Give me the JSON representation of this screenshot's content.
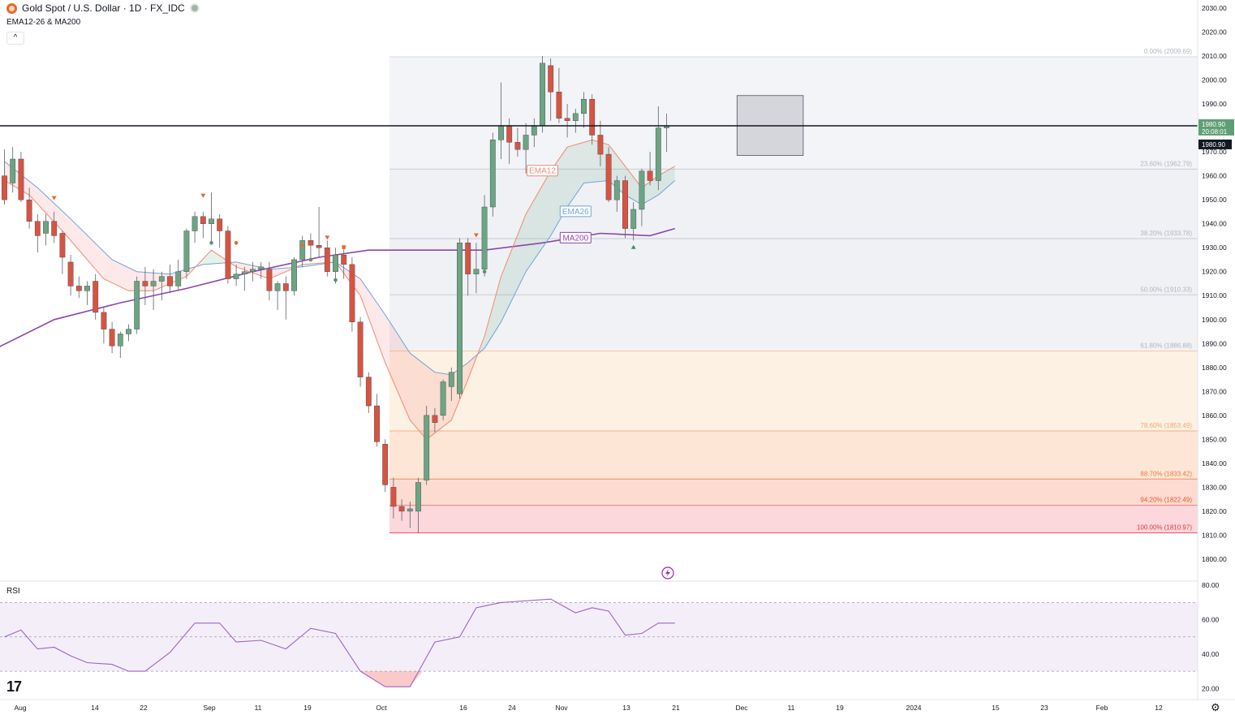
{
  "header": {
    "title": "Gold Spot / U.S. Dollar · 1D · FX_IDC",
    "indicator": "EMA12-26 & MA200",
    "collapse_glyph": "^",
    "rsi_label": "RSI",
    "logo": "17"
  },
  "colors": {
    "up": "#6ba583",
    "down": "#d75442",
    "ema12": "#f08a73",
    "ema26": "#6fa4d9",
    "ma200": "#8e44ad",
    "rsi": "#9c62c9",
    "price_label_bg": "#5f9f75"
  },
  "chart_data": [
    {
      "type": "candlestick",
      "title": "Gold Spot / U.S. Dollar · 1D · FX_IDC",
      "price_axis": {
        "ticks": [
          "1800.00",
          "1810.00",
          "1820.00",
          "1830.00",
          "1840.00",
          "1850.00",
          "1860.00",
          "1870.00",
          "1880.00",
          "1890.00",
          "1900.00",
          "1910.00",
          "1920.00",
          "1930.00",
          "1940.00",
          "1950.00",
          "1960.00",
          "1970.00",
          "1980.00",
          "1990.00",
          "2000.00",
          "2010.00",
          "2020.00",
          "2030.00"
        ],
        "range": [
          1794,
          2032
        ]
      },
      "x_axis_ticks": [
        "Aug",
        "14",
        "22",
        "Sep",
        "11",
        "19",
        "Oct",
        "16",
        "24",
        "Nov",
        "13",
        "21",
        "Dec",
        "11",
        "19",
        "2024",
        "15",
        "23",
        "Feb",
        "12"
      ],
      "last_price": {
        "price": 1980.9,
        "label": "1980.90",
        "countdown": "20:08:01"
      },
      "horizontal_line": 1980.9,
      "fibonacci": {
        "high": 2009.69,
        "low": 1810.97,
        "levels": [
          {
            "label": "0.00% (2009.69)",
            "price": 2009.69
          },
          {
            "label": "23.60% (1962.79)",
            "price": 1962.79
          },
          {
            "label": "38.20% (1933.78)",
            "price": 1933.78
          },
          {
            "label": "50.00% (1910.33)",
            "price": 1910.33
          },
          {
            "label": "61.80% (1886.88)",
            "price": 1886.88
          },
          {
            "label": "78.60% (1853.49)",
            "price": 1853.49
          },
          {
            "label": "88.70% (1833.42)",
            "price": 1833.42
          },
          {
            "label": "94.20% (1822.49)",
            "price": 1822.49
          },
          {
            "label": "100.00% (1810.97)",
            "price": 1810.97
          }
        ]
      },
      "target_zone": {
        "price_high": 1993.5,
        "price_low": 1968.5,
        "x_start_index": 89,
        "x_end_index": 97
      },
      "candles": [
        [
          1960,
          1971,
          1948,
          1950
        ],
        [
          1957,
          1972,
          1953,
          1967
        ],
        [
          1967,
          1970,
          1949,
          1950
        ],
        [
          1950,
          1955,
          1938,
          1941
        ],
        [
          1941,
          1944,
          1928,
          1935
        ],
        [
          1936,
          1944,
          1931,
          1941
        ],
        [
          1941,
          1945,
          1932,
          1935
        ],
        [
          1936,
          1937,
          1919,
          1926
        ],
        [
          1924,
          1927,
          1910,
          1914
        ],
        [
          1914,
          1918,
          1909,
          1912
        ],
        [
          1912,
          1916,
          1906,
          1914
        ],
        [
          1916,
          1919,
          1900,
          1903
        ],
        [
          1903,
          1905,
          1890,
          1896
        ],
        [
          1896,
          1899,
          1886,
          1889
        ],
        [
          1889,
          1895,
          1884,
          1894
        ],
        [
          1894,
          1898,
          1891,
          1896
        ],
        [
          1896,
          1918,
          1894,
          1916
        ],
        [
          1916,
          1922,
          1906,
          1914
        ],
        [
          1914,
          1921,
          1904,
          1916
        ],
        [
          1916,
          1920,
          1908,
          1918
        ],
        [
          1918,
          1923,
          1911,
          1914
        ],
        [
          1914,
          1925,
          1912,
          1920
        ],
        [
          1920,
          1938,
          1917,
          1937
        ],
        [
          1937,
          1945,
          1932,
          1943
        ],
        [
          1943,
          1945,
          1934,
          1940
        ],
        [
          1940,
          1953,
          1932,
          1942
        ],
        [
          1942,
          1944,
          1930,
          1937
        ],
        [
          1937,
          1939,
          1915,
          1917
        ],
        [
          1917,
          1923,
          1914,
          1919
        ],
        [
          1919,
          1922,
          1912,
          1920
        ],
        [
          1920,
          1924,
          1916,
          1921
        ],
        [
          1921,
          1924,
          1917,
          1922
        ],
        [
          1921,
          1924,
          1908,
          1912
        ],
        [
          1912,
          1916,
          1904,
          1915
        ],
        [
          1915,
          1918,
          1900,
          1912
        ],
        [
          1912,
          1926,
          1910,
          1925
        ],
        [
          1925,
          1935,
          1922,
          1933
        ],
        [
          1933,
          1936,
          1925,
          1931
        ],
        [
          1931,
          1947,
          1926,
          1930
        ],
        [
          1930,
          1933,
          1918,
          1920
        ],
        [
          1920,
          1930,
          1915,
          1927
        ],
        [
          1927,
          1929,
          1917,
          1923
        ],
        [
          1923,
          1926,
          1895,
          1899
        ],
        [
          1899,
          1901,
          1872,
          1876
        ],
        [
          1876,
          1878,
          1861,
          1864
        ],
        [
          1864,
          1869,
          1847,
          1849
        ],
        [
          1848,
          1850,
          1828,
          1831
        ],
        [
          1830,
          1834,
          1817,
          1822
        ],
        [
          1822,
          1825,
          1816,
          1820
        ],
        [
          1820,
          1824,
          1813,
          1821
        ],
        [
          1820,
          1834,
          1811,
          1832
        ],
        [
          1833,
          1864,
          1831,
          1860
        ],
        [
          1860,
          1863,
          1853,
          1857
        ],
        [
          1860,
          1875,
          1858,
          1874
        ],
        [
          1872,
          1880,
          1866,
          1878
        ],
        [
          1869,
          1934,
          1867,
          1932
        ],
        [
          1932,
          1934,
          1910,
          1919
        ],
        [
          1919,
          1932,
          1911,
          1921
        ],
        [
          1921,
          1952,
          1918,
          1947
        ],
        [
          1947,
          1978,
          1943,
          1975
        ],
        [
          1975,
          1999,
          1967,
          1981
        ],
        [
          1981,
          1984,
          1965,
          1974
        ],
        [
          1974,
          1980,
          1968,
          1971
        ],
        [
          1971,
          1982,
          1961,
          1977
        ],
        [
          1977,
          1984,
          1972,
          1981
        ],
        [
          1981,
          2010,
          1978,
          2007
        ],
        [
          2006,
          2009,
          1983,
          1995
        ],
        [
          1995,
          2005,
          1982,
          1984
        ],
        [
          1984,
          1990,
          1976,
          1983
        ],
        [
          1983,
          1988,
          1978,
          1986
        ],
        [
          1986,
          1995,
          1980,
          1992
        ],
        [
          1992,
          1994,
          1973,
          1977
        ],
        [
          1977,
          1983,
          1964,
          1969
        ],
        [
          1969,
          1972,
          1949,
          1950
        ],
        [
          1950,
          1960,
          1945,
          1958
        ],
        [
          1958,
          1960,
          1934,
          1938
        ],
        [
          1938,
          1949,
          1933,
          1946
        ],
        [
          1946,
          1963,
          1939,
          1962
        ],
        [
          1962,
          1970,
          1956,
          1958
        ],
        [
          1958,
          1989,
          1954,
          1980
        ],
        [
          1980,
          1986,
          1970,
          1980.9
        ]
      ],
      "ema12": [
        [
          0,
          1958
        ],
        [
          3,
          1952
        ],
        [
          7,
          1937
        ],
        [
          12,
          1917
        ],
        [
          15,
          1912
        ],
        [
          18,
          1912
        ],
        [
          22,
          1918
        ],
        [
          25,
          1929
        ],
        [
          28,
          1922
        ],
        [
          32,
          1917
        ],
        [
          36,
          1923
        ],
        [
          40,
          1924
        ],
        [
          43,
          1910
        ],
        [
          46,
          1882
        ],
        [
          49,
          1858
        ],
        [
          51,
          1850
        ],
        [
          54,
          1858
        ],
        [
          56,
          1875
        ],
        [
          58,
          1893
        ],
        [
          60,
          1918
        ],
        [
          63,
          1944
        ],
        [
          66,
          1962
        ],
        [
          68,
          1972
        ],
        [
          71,
          1975
        ],
        [
          73,
          1973
        ],
        [
          75,
          1964
        ],
        [
          77,
          1955
        ],
        [
          79,
          1960
        ],
        [
          81,
          1964
        ]
      ],
      "ema26": [
        [
          0,
          1966
        ],
        [
          4,
          1955
        ],
        [
          8,
          1942
        ],
        [
          13,
          1925
        ],
        [
          16,
          1920
        ],
        [
          20,
          1919
        ],
        [
          24,
          1923
        ],
        [
          28,
          1924
        ],
        [
          32,
          1921
        ],
        [
          36,
          1922
        ],
        [
          40,
          1924
        ],
        [
          43,
          1917
        ],
        [
          46,
          1902
        ],
        [
          49,
          1886
        ],
        [
          52,
          1878
        ],
        [
          54,
          1877
        ],
        [
          56,
          1882
        ],
        [
          58,
          1888
        ],
        [
          60,
          1899
        ],
        [
          63,
          1920
        ],
        [
          66,
          1935
        ],
        [
          68,
          1947
        ],
        [
          70,
          1957
        ],
        [
          73,
          1958
        ],
        [
          75,
          1952
        ],
        [
          77,
          1948
        ],
        [
          79,
          1952
        ],
        [
          81,
          1958
        ]
      ],
      "ma200": [
        [
          -1,
          1888
        ],
        [
          6,
          1900
        ],
        [
          14,
          1907
        ],
        [
          22,
          1913
        ],
        [
          30,
          1920
        ],
        [
          38,
          1926
        ],
        [
          44,
          1929
        ],
        [
          52,
          1929
        ],
        [
          58,
          1929
        ],
        [
          65,
          1932
        ],
        [
          72,
          1936
        ],
        [
          78,
          1935
        ],
        [
          81,
          1938
        ]
      ],
      "labels": [
        {
          "text": "EMA12",
          "index": 65,
          "price": 1962
        },
        {
          "text": "EMA26",
          "index": 69,
          "price": 1945
        },
        {
          "text": "MA200",
          "index": 69,
          "price": 1934
        }
      ],
      "markers": [
        {
          "type": "down",
          "index": 6,
          "price": 1950.5
        },
        {
          "type": "down",
          "index": 24,
          "price": 1951.5
        },
        {
          "type": "down",
          "index": 39,
          "price": 1934
        },
        {
          "type": "down",
          "index": 41,
          "price": 1930
        },
        {
          "type": "down",
          "index": 57,
          "price": 1935
        },
        {
          "type": "dot-red",
          "index": 28,
          "price": 1932
        },
        {
          "type": "dot-red",
          "index": 36,
          "price": 1931
        },
        {
          "type": "dot-red",
          "index": 41,
          "price": 1930
        },
        {
          "type": "dot-green",
          "index": 25,
          "price": 1932
        },
        {
          "type": "dot-green",
          "index": 37,
          "price": 1925
        },
        {
          "type": "dot-green",
          "index": 40,
          "price": 1916.5
        },
        {
          "type": "dot-green",
          "index": 58,
          "price": 1920
        },
        {
          "type": "up",
          "index": 76,
          "price": 1930.5
        }
      ]
    },
    {
      "type": "line",
      "title": "RSI",
      "y_axis_ticks": [
        "20.00",
        "40.00",
        "60.00",
        "80.00"
      ],
      "range": [
        14,
        82
      ],
      "bands": [
        30,
        50,
        70
      ],
      "values": [
        [
          0,
          50
        ],
        [
          2,
          54
        ],
        [
          4,
          43
        ],
        [
          6,
          44
        ],
        [
          8,
          39
        ],
        [
          10,
          35
        ],
        [
          13,
          34
        ],
        [
          15,
          30
        ],
        [
          17,
          30
        ],
        [
          20,
          41
        ],
        [
          23,
          58
        ],
        [
          26,
          58
        ],
        [
          28,
          47
        ],
        [
          31,
          48
        ],
        [
          34,
          43
        ],
        [
          37,
          55
        ],
        [
          40,
          52
        ],
        [
          43,
          30
        ],
        [
          46,
          21
        ],
        [
          49,
          21
        ],
        [
          52,
          47
        ],
        [
          55,
          50
        ],
        [
          57,
          67
        ],
        [
          60,
          70
        ],
        [
          63,
          71
        ],
        [
          66,
          72
        ],
        [
          69,
          64
        ],
        [
          71,
          67
        ],
        [
          73,
          65
        ],
        [
          75,
          51
        ],
        [
          77,
          52
        ],
        [
          79,
          58
        ],
        [
          81,
          58
        ]
      ]
    }
  ]
}
